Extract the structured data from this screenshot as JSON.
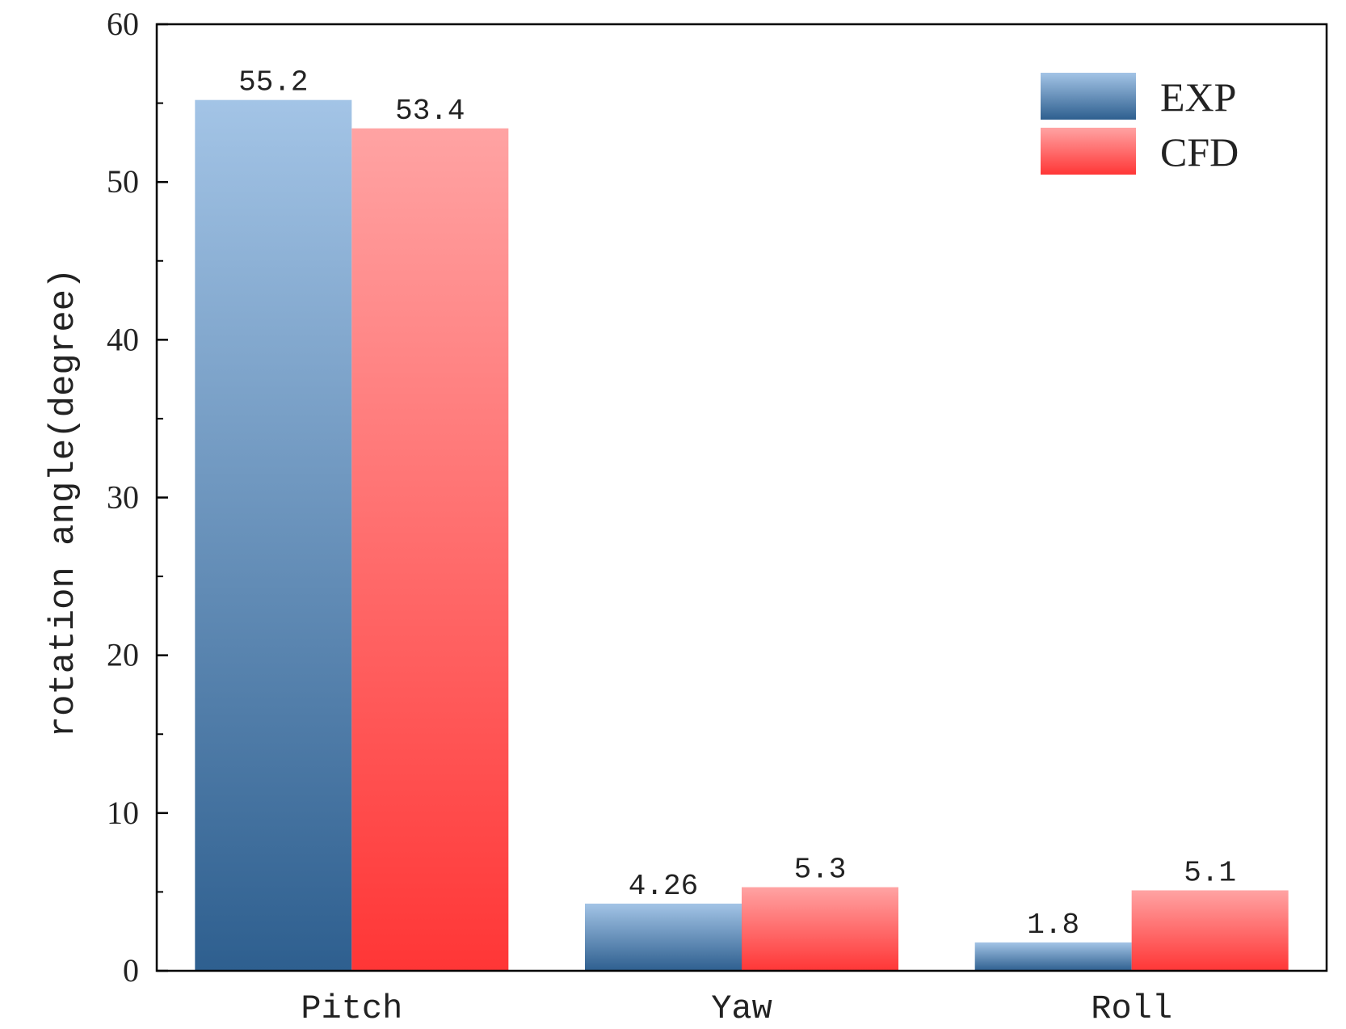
{
  "chart_data": {
    "type": "bar",
    "categories": [
      "Pitch",
      "Yaw",
      "Roll"
    ],
    "series": [
      {
        "name": "EXP",
        "values": [
          55.2,
          4.26,
          1.8
        ],
        "value_labels": [
          "55.2",
          "4.26",
          "1.8"
        ],
        "color_top": "#a3c4e6",
        "color_bottom": "#2e5f8f"
      },
      {
        "name": "CFD",
        "values": [
          53.4,
          5.3,
          5.1
        ],
        "value_labels": [
          "53.4",
          "5.3",
          "5.1"
        ],
        "color_top": "#ffa3a3",
        "color_bottom": "#ff3636"
      }
    ],
    "ylabel": "rotation angle(degree)",
    "xlabel": "",
    "ylim": [
      0,
      60
    ],
    "yticks": [
      0,
      10,
      20,
      30,
      40,
      50,
      60
    ],
    "minor_ticks": true,
    "grid": false,
    "legend_position": "top-right"
  }
}
